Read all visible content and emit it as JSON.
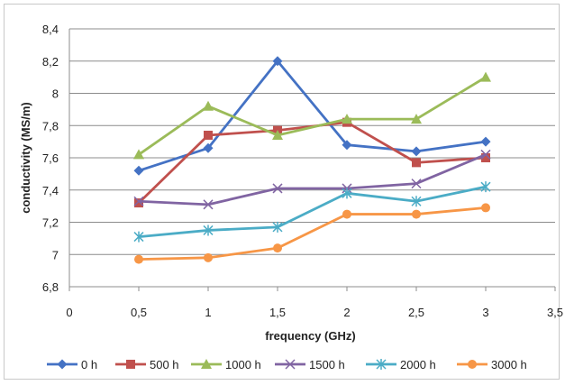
{
  "chart_data": {
    "type": "line",
    "title": "",
    "xlabel": "frequency (GHz)",
    "ylabel": "conductivity (MS/m)",
    "xlim": [
      0,
      3.5
    ],
    "ylim": [
      6.8,
      8.4
    ],
    "x_ticks": [
      0,
      0.5,
      1,
      1.5,
      2,
      2.5,
      3,
      3.5
    ],
    "x_tick_labels": [
      "0",
      "0,5",
      "1",
      "1,5",
      "2",
      "2,5",
      "3",
      "3,5"
    ],
    "y_ticks": [
      6.8,
      7,
      7.2,
      7.4,
      7.6,
      7.8,
      8,
      8.2,
      8.4
    ],
    "y_tick_labels": [
      "6,8",
      "7",
      "7,2",
      "7,4",
      "7,6",
      "7,8",
      "8",
      "8,2",
      "8,4"
    ],
    "grid": "horizontal",
    "legend_position": "bottom",
    "x": [
      0.5,
      1,
      1.5,
      2,
      2.5,
      3
    ],
    "series": [
      {
        "name": "0 h",
        "color": "#4472c4",
        "marker": "diamond",
        "values": [
          7.52,
          7.66,
          8.2,
          7.68,
          7.64,
          7.7
        ]
      },
      {
        "name": "500 h",
        "color": "#c0504d",
        "marker": "square",
        "values": [
          7.32,
          7.74,
          7.77,
          7.82,
          7.57,
          7.6
        ]
      },
      {
        "name": "1000 h",
        "color": "#9bbb59",
        "marker": "triangle",
        "values": [
          7.62,
          7.92,
          7.74,
          7.84,
          7.84,
          8.1
        ]
      },
      {
        "name": "1500 h",
        "color": "#8064a2",
        "marker": "x",
        "values": [
          7.33,
          7.31,
          7.41,
          7.41,
          7.44,
          7.62
        ]
      },
      {
        "name": "2000 h",
        "color": "#4bacc6",
        "marker": "star",
        "values": [
          7.11,
          7.15,
          7.17,
          7.38,
          7.33,
          7.42
        ]
      },
      {
        "name": "3000 h",
        "color": "#f79646",
        "marker": "circle",
        "values": [
          6.97,
          6.98,
          7.04,
          7.25,
          7.25,
          7.29
        ]
      }
    ]
  }
}
